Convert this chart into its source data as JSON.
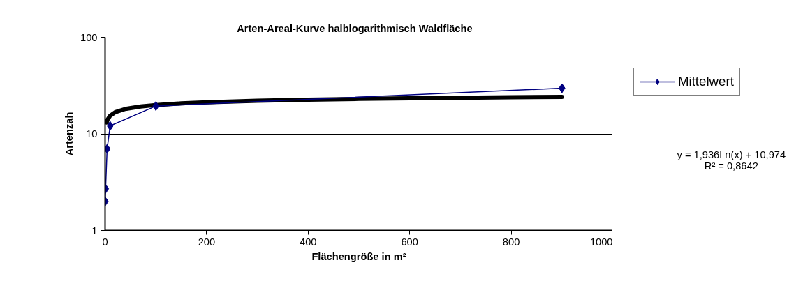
{
  "chart_data": {
    "type": "line",
    "title": "Arten-Areal-Kurve halblogarithmisch    Waldfläche",
    "xlabel": "Flächengröße in m²",
    "ylabel": "Artenzah",
    "xlim": [
      0,
      1000
    ],
    "xticks": [
      0,
      200,
      400,
      600,
      800,
      1000
    ],
    "ylim": [
      1,
      100
    ],
    "yticks": [
      1,
      10,
      100
    ],
    "log": "y",
    "grid": "y",
    "legend": "right",
    "series": [
      {
        "type": "line",
        "color": "#000000",
        "marker": "none",
        "x": [
          3,
          5,
          10,
          20,
          40,
          70,
          100,
          150,
          200,
          300,
          400,
          500,
          600,
          700,
          800,
          900
        ],
        "values": [
          13.1,
          14.09,
          15.43,
          16.77,
          18.12,
          19.2,
          19.89,
          20.67,
          21.23,
          22.02,
          22.57,
          23.01,
          23.36,
          23.66,
          23.92,
          24.14
        ]
      },
      {
        "name": "Mittelwert",
        "color": "#000080",
        "marker": "diamond",
        "x": [
          0.25,
          1,
          4,
          10,
          100,
          900
        ],
        "values": [
          2,
          2.7,
          7,
          12.1,
          19.4,
          29.7
        ],
        "errors": [
          null,
          null,
          null,
          null,
          null,
          [
            27,
            33
          ]
        ]
      }
    ],
    "annotations": [
      "y = 1,936Ln(x) + 10,974",
      "R² = 0,8642"
    ]
  }
}
